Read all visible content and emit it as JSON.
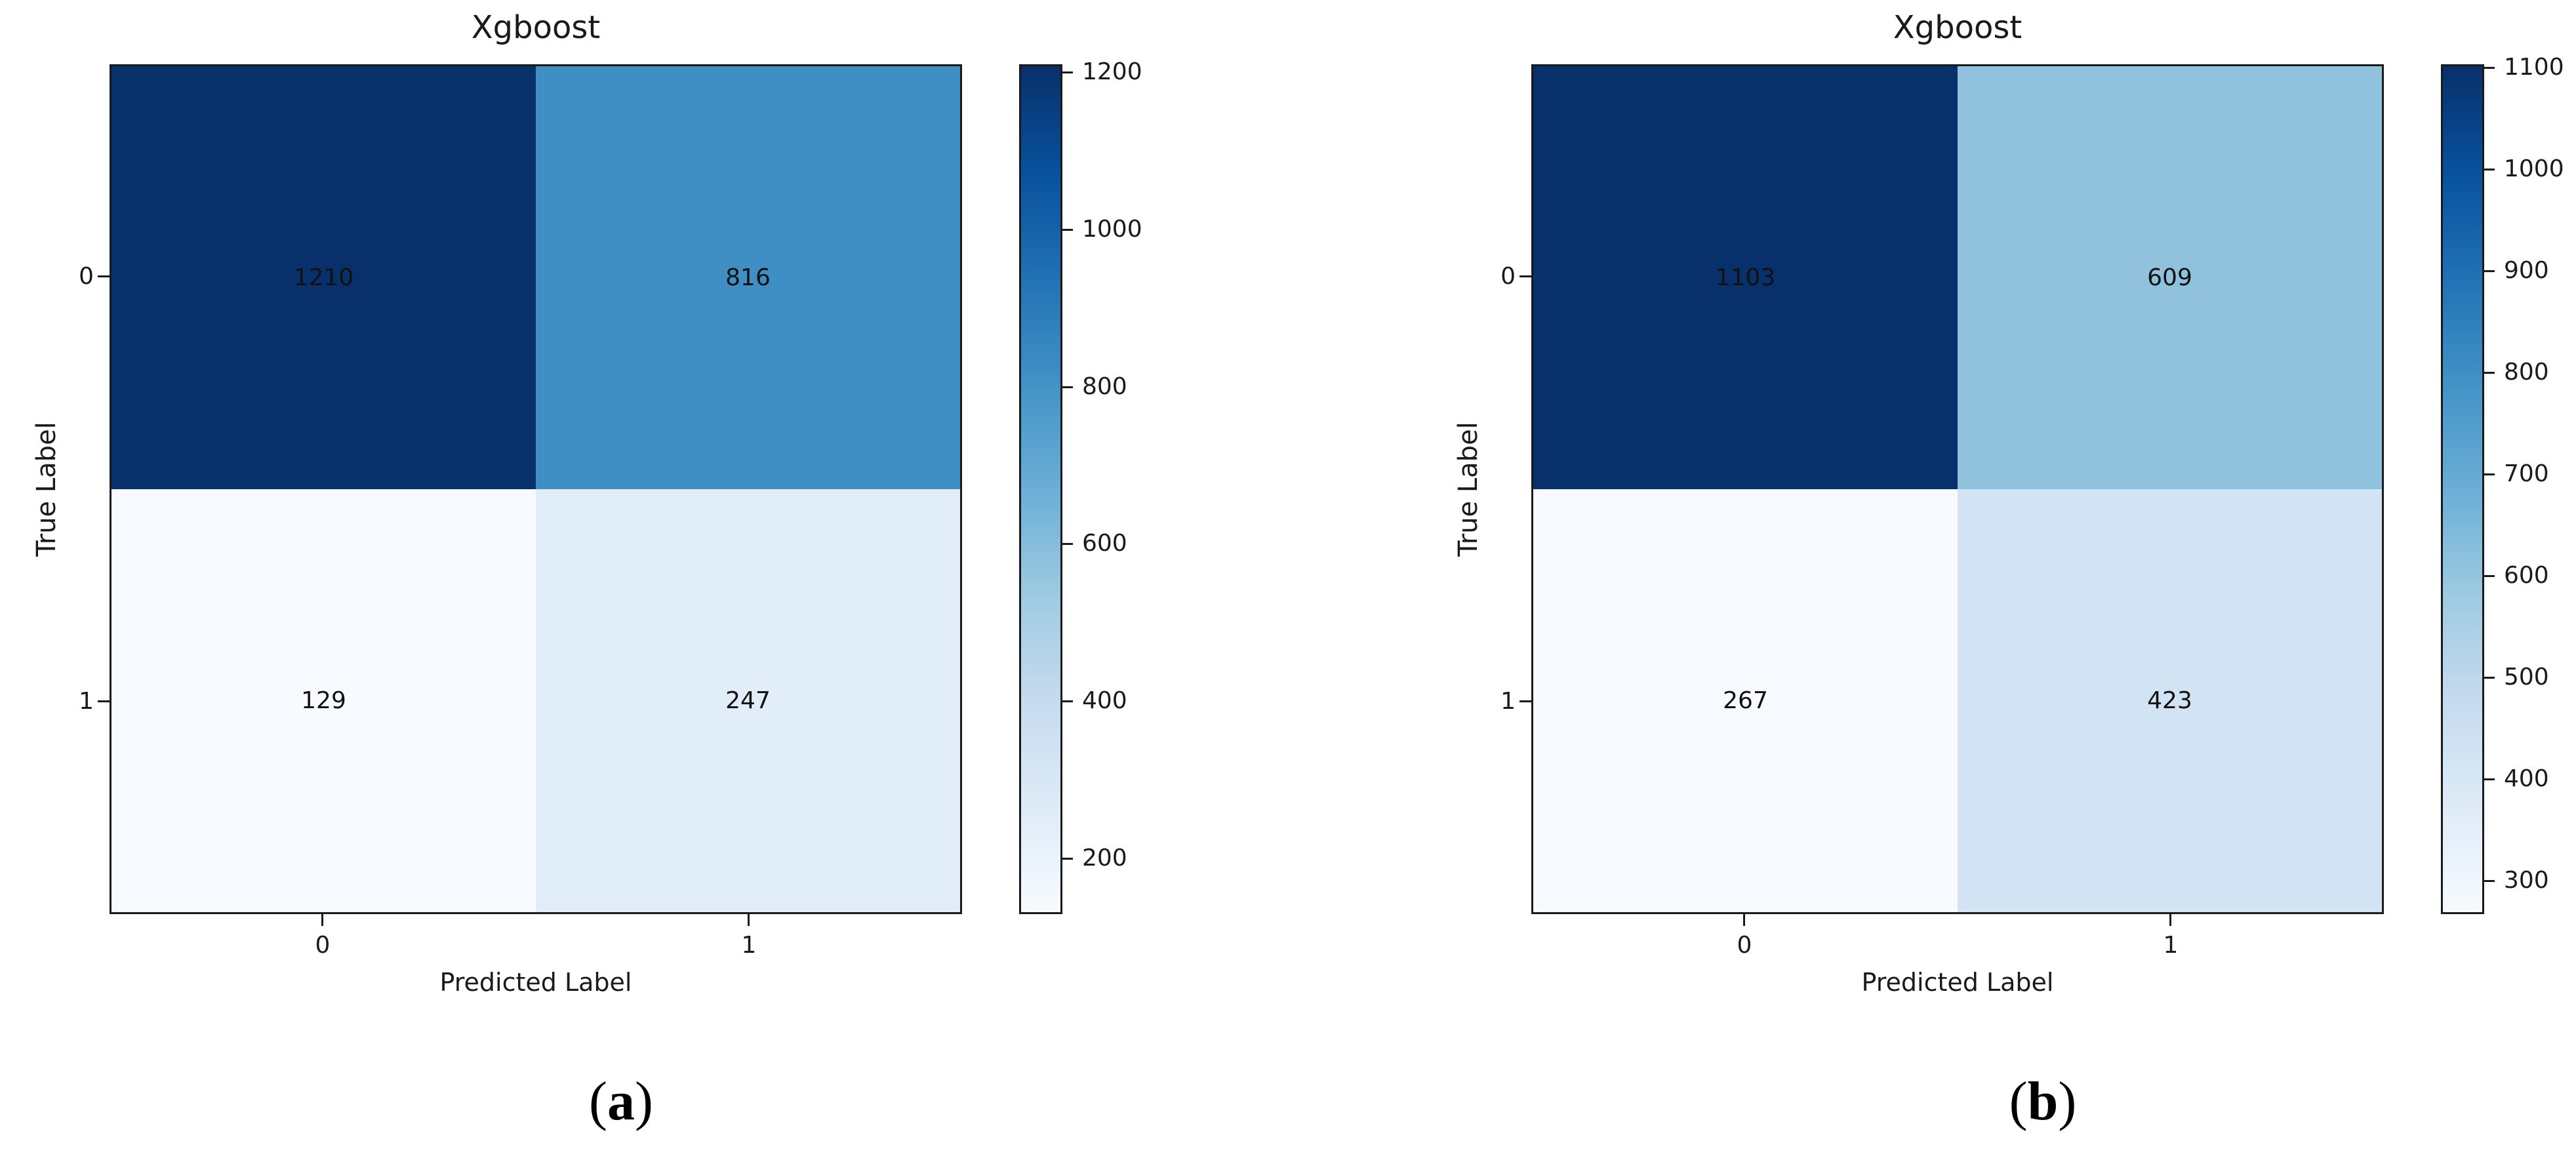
{
  "page": {
    "background": "#ffffff"
  },
  "colors": {
    "cmap_name": "Blues",
    "blues_anchors": [
      "#f7fbff",
      "#deebf7",
      "#c6dbef",
      "#9ecae1",
      "#6baed6",
      "#4292c6",
      "#2171b5",
      "#08519c",
      "#08306b"
    ],
    "spine": "#1a1a1a",
    "text": "#1a1a1a",
    "cell_text": "#111111"
  },
  "chart_data": [
    {
      "type": "heatmap",
      "title": "Xgboost",
      "xlabel": "Predicted Label",
      "ylabel": "True Label",
      "row_labels": [
        "0",
        "1"
      ],
      "col_labels": [
        "0",
        "1"
      ],
      "values": [
        [
          1210,
          816
        ],
        [
          129,
          247
        ]
      ],
      "vmin": 129,
      "vmax": 1210,
      "colorbar_ticks": [
        200,
        400,
        600,
        800,
        1000,
        1200
      ],
      "legend_position": "right-colorbar",
      "grid": false,
      "caption": {
        "open": "(",
        "letter": "a",
        "close": ")"
      }
    },
    {
      "type": "heatmap",
      "title": "Xgboost",
      "xlabel": "Predicted Label",
      "ylabel": "True Label",
      "row_labels": [
        "0",
        "1"
      ],
      "col_labels": [
        "0",
        "1"
      ],
      "values": [
        [
          1103,
          609
        ],
        [
          267,
          423
        ]
      ],
      "vmin": 267,
      "vmax": 1103,
      "colorbar_ticks": [
        300,
        400,
        500,
        600,
        700,
        800,
        900,
        1000,
        1100
      ],
      "legend_position": "right-colorbar",
      "grid": false,
      "caption": {
        "open": "(",
        "letter": "b",
        "close": ")"
      }
    }
  ]
}
